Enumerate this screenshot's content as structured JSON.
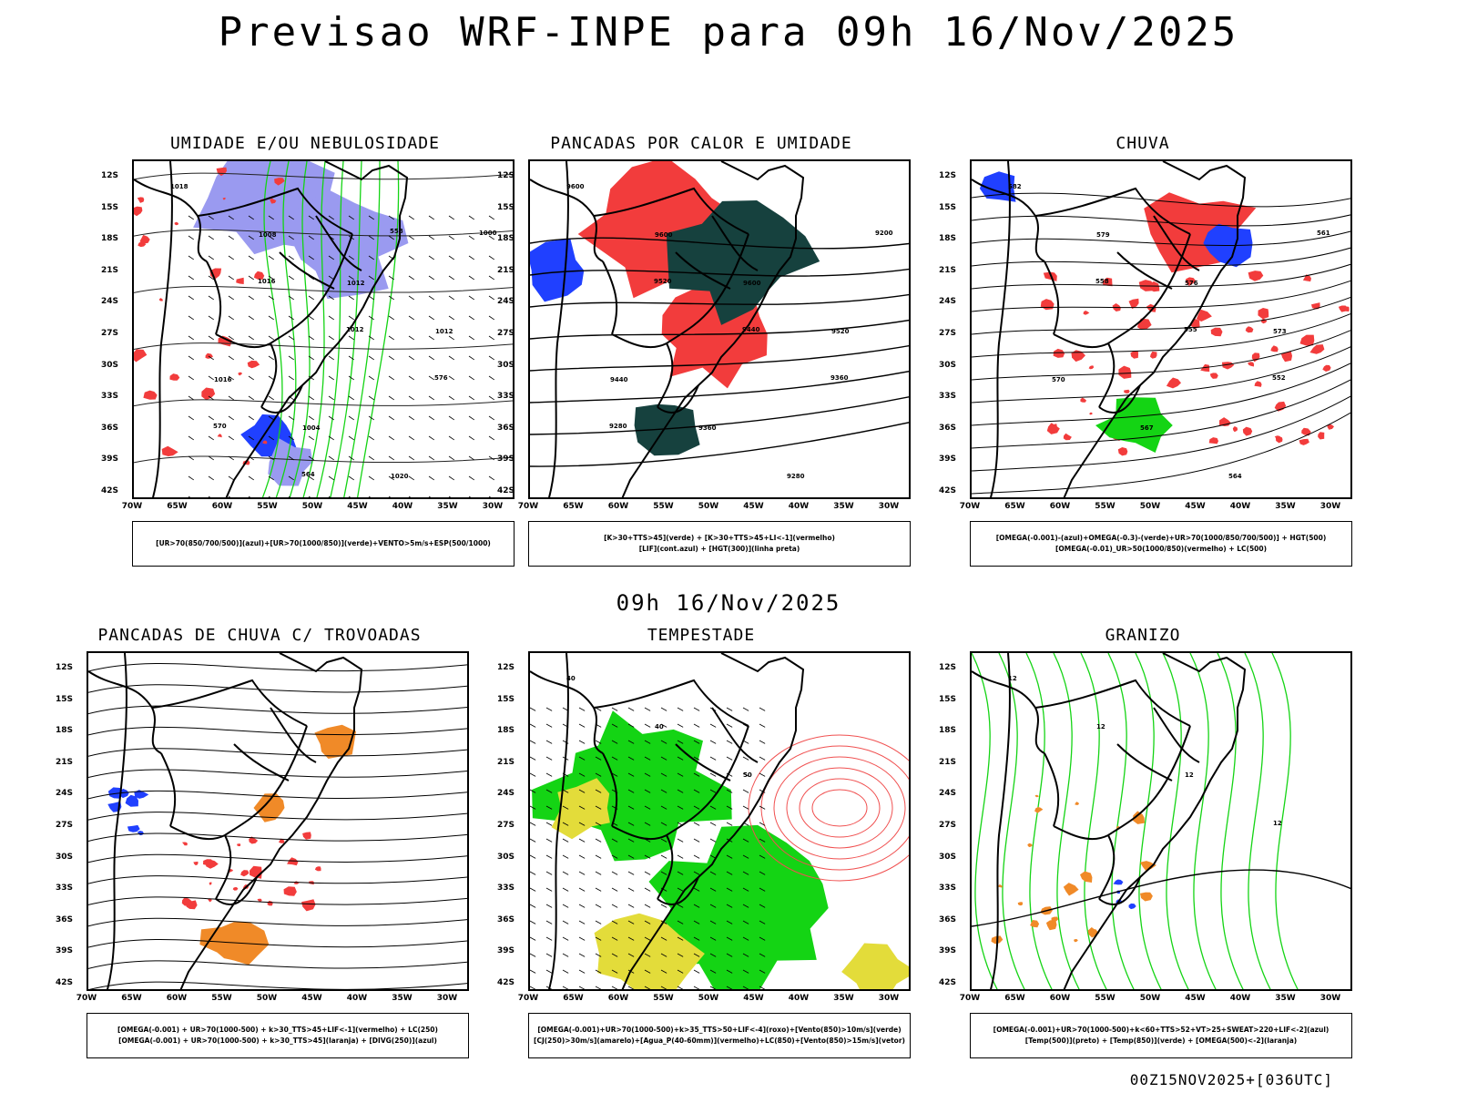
{
  "header": {
    "title": "Previsao WRF-INPE  para 09h 16/Nov/2025"
  },
  "middle_date": "09h 16/Nov/2025",
  "run_id": "00Z15NOV2025+[036UTC]",
  "axes": {
    "lat_labels": [
      "12S",
      "15S",
      "18S",
      "21S",
      "24S",
      "27S",
      "30S",
      "33S",
      "36S",
      "39S",
      "42S"
    ],
    "lon_labels": [
      "70W",
      "65W",
      "60W",
      "55W",
      "50W",
      "45W",
      "40W",
      "35W",
      "30W"
    ]
  },
  "panels": [
    {
      "id": "umidade",
      "title": "UMIDADE E/OU NEBULOSIDADE",
      "legend": [
        "[UR>70(850/700/500)](azul)+[UR>70(1000/850)](verde)+VENTO>5m/s+ESP(500/1000)"
      ],
      "contour_labels": [
        "1018",
        "1008",
        "1012",
        "1012",
        "1016",
        "1004",
        "1020",
        "1000",
        "1016",
        "1012",
        "576",
        "570",
        "564",
        "558"
      ]
    },
    {
      "id": "pancadas-calor",
      "title": "PANCADAS POR CALOR E UMIDADE",
      "legend": [
        "[K>30+TTS>45](verde) + [K>30+TTS>45+LI<-1](vermelho)",
        "[LIF](cont.azul) + [HGT(300)](linha preta)"
      ],
      "contour_labels": [
        "9600",
        "9600",
        "9600",
        "9520",
        "9440",
        "9360",
        "9280",
        "9200",
        "9520",
        "9440",
        "9360",
        "9280"
      ]
    },
    {
      "id": "chuva",
      "title": "CHUVA",
      "legend": [
        "[OMEGA(-0.001)-(azul)+OMEGA(-0.3)-(verde)+UR>70(1000/850/700/500)] + HGT(500)",
        "[OMEGA(-0.01)_UR>50(1000/850)(vermelho) + LC(500)"
      ],
      "contour_labels": [
        "582",
        "579",
        "576",
        "573",
        "570",
        "567",
        "564",
        "561",
        "558",
        "555",
        "552"
      ]
    },
    {
      "id": "pancadas-trovoadas",
      "title": "PANCADAS DE CHUVA C/ TROVOADAS",
      "legend": [
        "[OMEGA(-0.001) + UR>70(1000-500) + k>30_TTS>45+LIF<-1](vermelho) + LC(250)",
        "[OMEGA(-0.001) + UR>70(1000-500) + k>30_TTS>45](laranja) + [DIVG(250)](azul)"
      ],
      "contour_labels": []
    },
    {
      "id": "tempestade",
      "title": "TEMPESTADE",
      "legend": [
        "[OMEGA(-0.001)+UR>70(1000-500)+k>35_TTS>50+LIF<-4](roxo)+[Vento(850)>10m/s](verde)",
        "[CJ(250)>30m/s](amarelo)+[Agua_P(40-60mm)](vermelho)+LC(850)+[Vento(850)>15m/s](vetor)"
      ],
      "contour_labels": [
        "40",
        "40",
        "50"
      ]
    },
    {
      "id": "granizo",
      "title": "GRANIZO",
      "legend": [
        "[OMEGA(-0.001)+UR>70(1000-500)+k<60+TTS>52+VT>25+SWEAT>220+LIF<-2](azul)",
        "[Temp(500)](preto) + [Temp(850)](verde) + [OMEGA(500)<-2](laranja)"
      ],
      "contour_labels": [
        "12",
        "12",
        "12",
        "12"
      ]
    }
  ],
  "colors": {
    "red": "#f23c3c",
    "green": "#14d414",
    "blue": "#2040ff",
    "lavender": "#9a9af0",
    "dark": "#16413e",
    "yellow": "#e3dc3a",
    "orange": "#f08a28",
    "purple": "#8020c0"
  }
}
